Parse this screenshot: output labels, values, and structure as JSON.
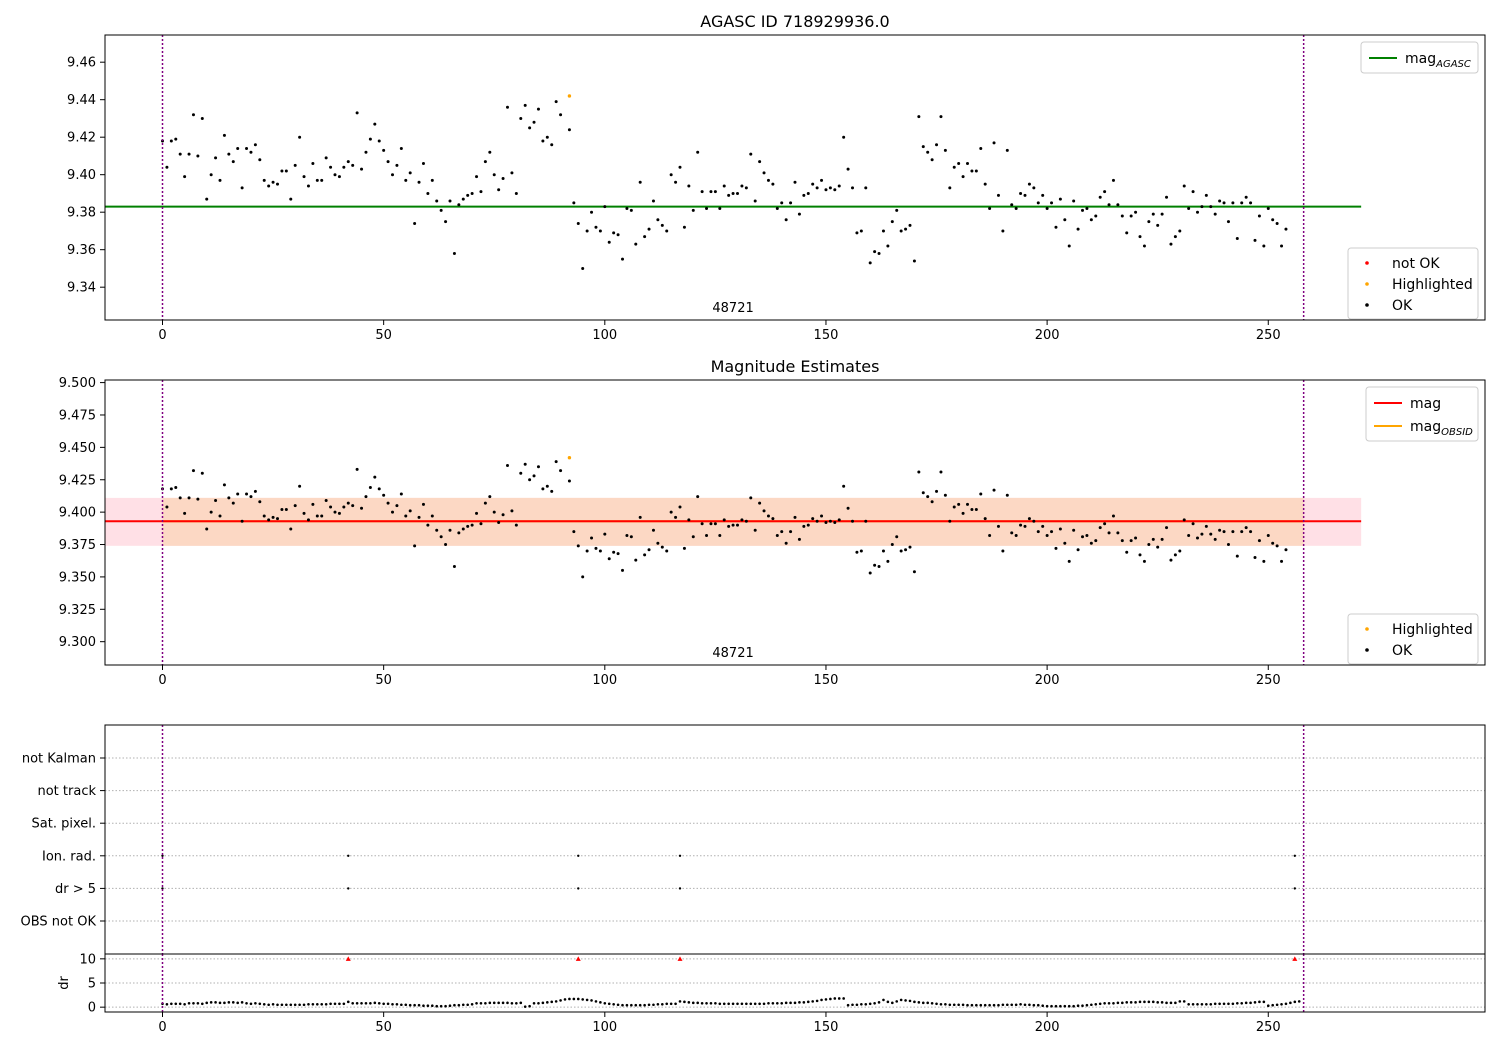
{
  "chart_data": [
    {
      "type": "scatter",
      "title": "AGASC ID 718929936.0",
      "xlim": [
        -13,
        299
      ],
      "ylim": [
        9.3225,
        9.4745
      ],
      "xticks": [
        0,
        50,
        100,
        150,
        200,
        250
      ],
      "yticks": [
        "9.34",
        "9.36",
        "9.38",
        "9.40",
        "9.42",
        "9.44",
        "9.46"
      ],
      "ytick_values": [
        9.34,
        9.36,
        9.38,
        9.4,
        9.42,
        9.44,
        9.46
      ],
      "obsid_label": "48721",
      "obsid_label_x": 129,
      "obsid_boundaries": [
        0,
        258
      ],
      "lines": [
        {
          "name": "mag_AGASC",
          "legend_main": "mag",
          "legend_sub": "AGASC",
          "y": 9.383,
          "x_range": [
            -13,
            271
          ],
          "color": "#008000"
        }
      ],
      "legend_lines_position": "upper right",
      "legend_points_position": "lower right",
      "legend_points": [
        {
          "label": "not OK",
          "color": "#ff0000"
        },
        {
          "label": "Highlighted",
          "color": "#ffa500"
        },
        {
          "label": "OK",
          "color": "#000000"
        }
      ],
      "highlighted": [
        {
          "x": 92,
          "y": 9.442
        }
      ]
    },
    {
      "type": "scatter",
      "title": "Magnitude Estimates",
      "xlim": [
        -13,
        299
      ],
      "ylim": [
        9.282,
        9.502
      ],
      "xticks": [
        0,
        50,
        100,
        150,
        200,
        250
      ],
      "yticks": [
        "9.300",
        "9.325",
        "9.350",
        "9.375",
        "9.400",
        "9.425",
        "9.450",
        "9.475",
        "9.500"
      ],
      "ytick_values": [
        9.3,
        9.325,
        9.35,
        9.375,
        9.4,
        9.425,
        9.45,
        9.475,
        9.5
      ],
      "obsid_label": "48721",
      "obsid_label_x": 129,
      "obsid_boundaries": [
        0,
        258
      ],
      "bands": [
        {
          "y_range": [
            9.374,
            9.411
          ],
          "x_range": [
            -13,
            271
          ],
          "color": "#ffe0e6"
        },
        {
          "y_range": [
            9.374,
            9.411
          ],
          "x_range": [
            0,
            258
          ],
          "color": "#fcd8c4"
        }
      ],
      "lines": [
        {
          "name": "mag_OBSID",
          "legend_main": "mag",
          "legend_sub": "OBSID",
          "y": 9.393,
          "x_range": [
            0,
            258
          ],
          "color": "#ffa500"
        },
        {
          "name": "mag",
          "legend_main": "mag",
          "legend_sub": "",
          "y": 9.393,
          "x_range": [
            -13,
            271
          ],
          "color": "#ff0000"
        }
      ],
      "legend_lines_position": "upper right",
      "legend_points_position": "lower right",
      "legend_points": [
        {
          "label": "Highlighted",
          "color": "#ffa500"
        },
        {
          "label": "OK",
          "color": "#000000"
        }
      ],
      "highlighted": [
        {
          "x": 92,
          "y": 9.442
        }
      ]
    },
    {
      "type": "scatter",
      "title": "",
      "categories": [
        "OBS not OK",
        "dr > 5",
        "Ion. rad.",
        "Sat. pixel.",
        "not track",
        "not Kalman"
      ],
      "flags": [
        {
          "category": "Ion. rad.",
          "x": [
            0,
            42,
            94,
            117,
            256
          ]
        },
        {
          "category": "dr > 5",
          "x": [
            0,
            42,
            94,
            117,
            256
          ]
        }
      ],
      "obsid_boundaries": [
        0,
        258
      ],
      "xlim": [
        -13,
        299
      ]
    },
    {
      "type": "scatter",
      "ylabel": "dr",
      "xlim": [
        -13,
        299
      ],
      "ylim": [
        -1,
        11
      ],
      "xticks": [
        0,
        50,
        100,
        150,
        200,
        250
      ],
      "yticks": [
        "0",
        "5",
        "10"
      ],
      "ytick_values": [
        0,
        5,
        10
      ],
      "obsid_boundaries": [
        0,
        258
      ],
      "clipped_markers": [
        {
          "x": 42,
          "y": 10
        },
        {
          "x": 94,
          "y": 10
        },
        {
          "x": 117,
          "y": 10
        },
        {
          "x": 256,
          "y": 10
        }
      ],
      "dr_values": [
        0.7,
        0.6,
        0.7,
        0.7,
        0.7,
        0.6,
        0.8,
        0.8,
        0.8,
        0.7,
        0.9,
        1.0,
        1.0,
        0.9,
        0.9,
        1.0,
        1.0,
        0.9,
        1.0,
        0.8,
        0.7,
        0.8,
        0.7,
        0.6,
        0.5,
        0.6,
        0.5,
        0.5,
        0.5,
        0.5,
        0.5,
        0.5,
        0.5,
        0.6,
        0.6,
        0.6,
        0.6,
        0.6,
        0.7,
        0.7,
        0.7,
        0.7,
        1.1,
        0.8,
        0.8,
        0.8,
        0.8,
        0.8,
        0.9,
        0.8,
        0.7,
        0.7,
        0.6,
        0.6,
        0.5,
        0.5,
        0.4,
        0.4,
        0.4,
        0.3,
        0.3,
        0.3,
        0.2,
        0.2,
        0.2,
        0.3,
        0.4,
        0.4,
        0.5,
        0.5,
        0.6,
        0.8,
        0.8,
        0.8,
        0.9,
        0.9,
        0.9,
        0.9,
        0.9,
        0.8,
        0.8,
        0.9,
        0.1,
        0.2,
        0.8,
        0.8,
        0.9,
        1.0,
        1.1,
        1.2,
        1.4,
        1.6,
        1.7,
        1.7,
        1.7,
        1.6,
        1.5,
        1.4,
        1.2,
        1.0,
        0.8,
        0.7,
        0.6,
        0.5,
        0.4,
        0.4,
        0.4,
        0.4,
        0.4,
        0.4,
        0.5,
        0.5,
        0.6,
        0.6,
        0.7,
        0.7,
        0.7,
        1.2,
        1.1,
        1.0,
        0.9,
        0.9,
        0.8,
        0.8,
        0.8,
        0.8,
        0.7,
        0.7,
        0.7,
        0.7,
        0.7,
        0.7,
        0.7,
        0.7,
        0.7,
        0.7,
        0.7,
        0.8,
        0.8,
        0.8,
        0.8,
        0.9,
        0.9,
        0.9,
        1.0,
        1.0,
        1.1,
        1.2,
        1.3,
        1.5,
        1.6,
        1.7,
        1.8,
        1.8,
        1.8,
        0.4,
        0.5,
        0.5,
        0.6,
        0.6,
        0.7,
        0.8,
        1.0,
        1.5,
        1.1,
        0.9,
        1.2,
        1.5,
        1.4,
        1.3,
        1.1,
        1.0,
        0.9,
        0.9,
        0.8,
        0.7,
        0.6,
        0.6,
        0.5,
        0.5,
        0.5,
        0.5,
        0.4,
        0.4,
        0.4,
        0.4,
        0.4,
        0.4,
        0.4,
        0.4,
        0.5,
        0.5,
        0.5,
        0.5,
        0.6,
        0.5,
        0.5,
        0.4,
        0.4,
        0.3,
        0.2,
        0.2,
        0.2,
        0.2,
        0.2,
        0.2,
        0.2,
        0.3,
        0.3,
        0.4,
        0.5,
        0.6,
        0.7,
        0.8,
        0.8,
        0.8,
        0.9,
        0.9,
        1.0,
        1.0,
        1.0,
        1.1,
        1.1,
        1.1,
        1.1,
        1.0,
        1.0,
        0.9,
        0.9,
        0.9,
        1.2,
        1.2,
        0.6,
        0.6,
        0.6,
        0.6,
        0.6,
        0.6,
        0.7,
        0.7,
        0.7,
        0.7,
        0.7,
        0.8,
        0.8,
        0.9,
        0.9,
        1.0,
        1.1,
        1.1,
        0.3,
        0.4,
        0.5,
        0.6,
        0.7,
        0.9,
        1.1,
        1.2
      ]
    }
  ],
  "mag_points": [
    [
      0,
      9.418
    ],
    [
      1,
      9.404
    ],
    [
      2,
      9.418
    ],
    [
      3,
      9.419
    ],
    [
      4,
      9.411
    ],
    [
      5,
      9.399
    ],
    [
      6,
      9.411
    ],
    [
      7,
      9.432
    ],
    [
      8,
      9.41
    ],
    [
      9,
      9.43
    ],
    [
      10,
      9.387
    ],
    [
      11,
      9.4
    ],
    [
      12,
      9.409
    ],
    [
      13,
      9.397
    ],
    [
      14,
      9.421
    ],
    [
      15,
      9.411
    ],
    [
      16,
      9.407
    ],
    [
      17,
      9.414
    ],
    [
      18,
      9.393
    ],
    [
      19,
      9.414
    ],
    [
      20,
      9.412
    ],
    [
      21,
      9.416
    ],
    [
      22,
      9.408
    ],
    [
      23,
      9.397
    ],
    [
      24,
      9.394
    ],
    [
      25,
      9.396
    ],
    [
      26,
      9.395
    ],
    [
      27,
      9.402
    ],
    [
      28,
      9.402
    ],
    [
      29,
      9.387
    ],
    [
      30,
      9.405
    ],
    [
      31,
      9.42
    ],
    [
      32,
      9.399
    ],
    [
      33,
      9.394
    ],
    [
      34,
      9.406
    ],
    [
      35,
      9.397
    ],
    [
      36,
      9.397
    ],
    [
      37,
      9.409
    ],
    [
      38,
      9.404
    ],
    [
      39,
      9.4
    ],
    [
      40,
      9.399
    ],
    [
      41,
      9.404
    ],
    [
      42,
      9.407
    ],
    [
      43,
      9.405
    ],
    [
      44,
      9.433
    ],
    [
      45,
      9.403
    ],
    [
      46,
      9.412
    ],
    [
      47,
      9.419
    ],
    [
      48,
      9.427
    ],
    [
      49,
      9.418
    ],
    [
      50,
      9.413
    ],
    [
      51,
      9.407
    ],
    [
      52,
      9.4
    ],
    [
      53,
      9.405
    ],
    [
      54,
      9.414
    ],
    [
      55,
      9.397
    ],
    [
      56,
      9.401
    ],
    [
      57,
      9.374
    ],
    [
      58,
      9.396
    ],
    [
      59,
      9.406
    ],
    [
      60,
      9.39
    ],
    [
      61,
      9.397
    ],
    [
      62,
      9.386
    ],
    [
      63,
      9.381
    ],
    [
      64,
      9.375
    ],
    [
      65,
      9.386
    ],
    [
      66,
      9.358
    ],
    [
      67,
      9.384
    ],
    [
      68,
      9.387
    ],
    [
      69,
      9.389
    ],
    [
      70,
      9.39
    ],
    [
      71,
      9.399
    ],
    [
      72,
      9.391
    ],
    [
      73,
      9.407
    ],
    [
      74,
      9.412
    ],
    [
      75,
      9.4
    ],
    [
      76,
      9.392
    ],
    [
      77,
      9.398
    ],
    [
      78,
      9.436
    ],
    [
      79,
      9.401
    ],
    [
      80,
      9.39
    ],
    [
      81,
      9.43
    ],
    [
      82,
      9.437
    ],
    [
      83,
      9.425
    ],
    [
      84,
      9.428
    ],
    [
      85,
      9.435
    ],
    [
      86,
      9.418
    ],
    [
      87,
      9.42
    ],
    [
      88,
      9.416
    ],
    [
      89,
      9.439
    ],
    [
      90,
      9.432
    ],
    [
      92,
      9.424
    ],
    [
      93,
      9.385
    ],
    [
      94,
      9.374
    ],
    [
      95,
      9.35
    ],
    [
      96,
      9.37
    ],
    [
      97,
      9.38
    ],
    [
      98,
      9.372
    ],
    [
      99,
      9.37
    ],
    [
      100,
      9.383
    ],
    [
      101,
      9.364
    ],
    [
      102,
      9.369
    ],
    [
      103,
      9.368
    ],
    [
      104,
      9.355
    ],
    [
      105,
      9.382
    ],
    [
      106,
      9.381
    ],
    [
      107,
      9.363
    ],
    [
      108,
      9.396
    ],
    [
      109,
      9.367
    ],
    [
      110,
      9.371
    ],
    [
      111,
      9.386
    ],
    [
      112,
      9.376
    ],
    [
      113,
      9.373
    ],
    [
      114,
      9.37
    ],
    [
      115,
      9.4
    ],
    [
      116,
      9.396
    ],
    [
      117,
      9.404
    ],
    [
      118,
      9.372
    ],
    [
      119,
      9.394
    ],
    [
      120,
      9.381
    ],
    [
      121,
      9.412
    ],
    [
      122,
      9.391
    ],
    [
      123,
      9.382
    ],
    [
      124,
      9.391
    ],
    [
      125,
      9.391
    ],
    [
      126,
      9.382
    ],
    [
      127,
      9.394
    ],
    [
      128,
      9.389
    ],
    [
      129,
      9.39
    ],
    [
      130,
      9.39
    ],
    [
      131,
      9.394
    ],
    [
      132,
      9.393
    ],
    [
      133,
      9.411
    ],
    [
      134,
      9.386
    ],
    [
      135,
      9.407
    ],
    [
      136,
      9.401
    ],
    [
      137,
      9.397
    ],
    [
      138,
      9.395
    ],
    [
      139,
      9.382
    ],
    [
      140,
      9.385
    ],
    [
      141,
      9.376
    ],
    [
      142,
      9.385
    ],
    [
      143,
      9.396
    ],
    [
      144,
      9.379
    ],
    [
      145,
      9.389
    ],
    [
      146,
      9.39
    ],
    [
      147,
      9.395
    ],
    [
      148,
      9.393
    ],
    [
      149,
      9.397
    ],
    [
      150,
      9.392
    ],
    [
      151,
      9.393
    ],
    [
      152,
      9.392
    ],
    [
      153,
      9.394
    ],
    [
      154,
      9.42
    ],
    [
      155,
      9.403
    ],
    [
      156,
      9.393
    ],
    [
      157,
      9.369
    ],
    [
      158,
      9.37
    ],
    [
      159,
      9.393
    ],
    [
      160,
      9.353
    ],
    [
      161,
      9.359
    ],
    [
      162,
      9.358
    ],
    [
      163,
      9.37
    ],
    [
      164,
      9.362
    ],
    [
      165,
      9.375
    ],
    [
      166,
      9.381
    ],
    [
      167,
      9.37
    ],
    [
      168,
      9.371
    ],
    [
      169,
      9.373
    ],
    [
      170,
      9.354
    ],
    [
      171,
      9.431
    ],
    [
      172,
      9.415
    ],
    [
      173,
      9.412
    ],
    [
      174,
      9.408
    ],
    [
      175,
      9.416
    ],
    [
      176,
      9.431
    ],
    [
      177,
      9.413
    ],
    [
      178,
      9.393
    ],
    [
      179,
      9.404
    ],
    [
      180,
      9.406
    ],
    [
      181,
      9.399
    ],
    [
      182,
      9.406
    ],
    [
      183,
      9.402
    ],
    [
      184,
      9.402
    ],
    [
      185,
      9.414
    ],
    [
      186,
      9.395
    ],
    [
      187,
      9.382
    ],
    [
      188,
      9.417
    ],
    [
      189,
      9.389
    ],
    [
      190,
      9.37
    ],
    [
      191,
      9.413
    ],
    [
      192,
      9.384
    ],
    [
      193,
      9.382
    ],
    [
      194,
      9.39
    ],
    [
      195,
      9.389
    ],
    [
      196,
      9.395
    ],
    [
      197,
      9.393
    ],
    [
      198,
      9.385
    ],
    [
      199,
      9.389
    ],
    [
      200,
      9.382
    ],
    [
      201,
      9.385
    ],
    [
      202,
      9.372
    ],
    [
      203,
      9.387
    ],
    [
      204,
      9.376
    ],
    [
      205,
      9.362
    ],
    [
      206,
      9.386
    ],
    [
      207,
      9.371
    ],
    [
      208,
      9.381
    ],
    [
      209,
      9.382
    ],
    [
      210,
      9.376
    ],
    [
      211,
      9.378
    ],
    [
      212,
      9.388
    ],
    [
      213,
      9.391
    ],
    [
      214,
      9.384
    ],
    [
      215,
      9.397
    ],
    [
      216,
      9.384
    ],
    [
      217,
      9.378
    ],
    [
      218,
      9.369
    ],
    [
      219,
      9.378
    ],
    [
      220,
      9.38
    ],
    [
      221,
      9.367
    ],
    [
      222,
      9.362
    ],
    [
      223,
      9.375
    ],
    [
      224,
      9.379
    ],
    [
      225,
      9.373
    ],
    [
      226,
      9.379
    ],
    [
      227,
      9.388
    ],
    [
      228,
      9.363
    ],
    [
      229,
      9.367
    ],
    [
      230,
      9.37
    ],
    [
      231,
      9.394
    ],
    [
      232,
      9.382
    ],
    [
      233,
      9.391
    ],
    [
      234,
      9.38
    ],
    [
      235,
      9.383
    ],
    [
      236,
      9.389
    ],
    [
      237,
      9.383
    ],
    [
      238,
      9.379
    ],
    [
      239,
      9.386
    ],
    [
      240,
      9.385
    ],
    [
      241,
      9.375
    ],
    [
      242,
      9.385
    ],
    [
      243,
      9.366
    ],
    [
      244,
      9.385
    ],
    [
      245,
      9.388
    ],
    [
      246,
      9.385
    ],
    [
      247,
      9.365
    ],
    [
      248,
      9.378
    ],
    [
      249,
      9.362
    ],
    [
      250,
      9.382
    ],
    [
      251,
      9.376
    ],
    [
      252,
      9.374
    ],
    [
      253,
      9.362
    ],
    [
      254,
      9.371
    ]
  ]
}
